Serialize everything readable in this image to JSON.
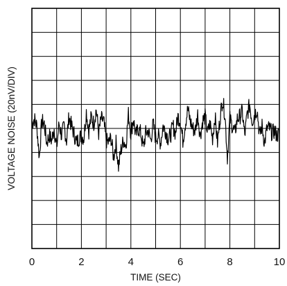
{
  "chart_data": {
    "type": "line",
    "title": "",
    "xlabel": "TIME (SEC)",
    "ylabel": "VOLTAGE NOISE (20nV/DIV)",
    "xlim": [
      0,
      10
    ],
    "ylim": [
      -5,
      5
    ],
    "x_ticks": [
      0,
      1,
      2,
      3,
      4,
      5,
      6,
      7,
      8,
      9,
      10
    ],
    "x_tick_labels": [
      "0",
      "2",
      "4",
      "6",
      "8",
      "10"
    ],
    "x_tick_label_values": [
      0,
      2,
      4,
      6,
      8,
      10
    ],
    "grid": true,
    "legend": "none",
    "line_color": "#000000",
    "series": [
      {
        "x": [
          0.0,
          0.1,
          0.2,
          0.3,
          0.4,
          0.5,
          0.6,
          0.7,
          0.8,
          0.9,
          1.0,
          1.1,
          1.2,
          1.3,
          1.4,
          1.5,
          1.6,
          1.7,
          1.8,
          1.9,
          2.0,
          2.1,
          2.2,
          2.3,
          2.4,
          2.5,
          2.6,
          2.7,
          2.8,
          2.9,
          3.0,
          3.1,
          3.2,
          3.3,
          3.4,
          3.5,
          3.6,
          3.7,
          3.8,
          3.9,
          4.0,
          4.1,
          4.2,
          4.3,
          4.4,
          4.5,
          4.6,
          4.7,
          4.8,
          4.9,
          5.0,
          5.1,
          5.2,
          5.3,
          5.4,
          5.5,
          5.6,
          5.7,
          5.8,
          5.9,
          6.0,
          6.1,
          6.2,
          6.3,
          6.4,
          6.5,
          6.6,
          6.7,
          6.8,
          6.9,
          7.0,
          7.1,
          7.2,
          7.3,
          7.4,
          7.5,
          7.6,
          7.7,
          7.8,
          7.9,
          8.0,
          8.1,
          8.2,
          8.3,
          8.4,
          8.5,
          8.6,
          8.7,
          8.8,
          8.9,
          9.0,
          9.1,
          9.2,
          9.3,
          9.4,
          9.5,
          9.6,
          9.7,
          9.8,
          9.9,
          10.0
        ],
        "y": [
          0.2,
          0.4,
          0.1,
          -1.2,
          0.3,
          0.2,
          -0.6,
          -0.3,
          -0.5,
          0.0,
          -0.8,
          0.2,
          -0.3,
          0.1,
          -0.5,
          0.5,
          0.1,
          -0.2,
          -0.6,
          -0.4,
          -0.3,
          -0.4,
          0.7,
          -0.1,
          0.5,
          0.2,
          0.8,
          -0.2,
          0.4,
          0.3,
          -0.5,
          -0.6,
          -0.4,
          -1.2,
          -0.6,
          -1.6,
          -0.9,
          -0.5,
          -0.7,
          0.6,
          -0.2,
          0.4,
          -0.3,
          0.0,
          -0.2,
          -0.8,
          -0.2,
          -0.1,
          -0.5,
          0.2,
          -0.4,
          -0.3,
          -0.6,
          0.1,
          -0.1,
          -0.4,
          -0.3,
          0.1,
          -0.2,
          0.5,
          0.3,
          -0.5,
          0.2,
          0.8,
          0.3,
          0.0,
          -0.1,
          0.6,
          -0.3,
          0.3,
          0.5,
          -0.2,
          0.2,
          -0.4,
          0.5,
          -0.6,
          0.4,
          1.2,
          0.6,
          -1.2,
          0.4,
          0.1,
          -0.2,
          0.4,
          0.5,
          0.7,
          -0.3,
          0.6,
          1.0,
          0.3,
          0.6,
          0.8,
          -0.3,
          0.1,
          -0.6,
          0.0,
          0.0,
          -0.2,
          -0.1,
          -0.3,
          -0.2
        ]
      }
    ]
  }
}
